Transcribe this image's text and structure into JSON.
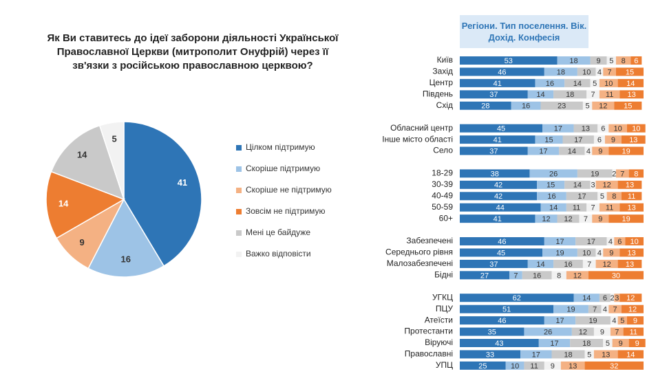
{
  "chart_data": [
    {
      "type": "pie",
      "title": "Як Ви ставитесь до ідеї заборони діяльності Української Православної Церкви (митрополит Онуфрій) через її зв'язки з російською православною церквою?",
      "categories": [
        "Цілком підтримую",
        "Скоріше підтримую",
        "Скоріше не підтримую",
        "Зовсім не підтримую",
        "Мені це байдуже",
        "Важко відповісти"
      ],
      "values": [
        41,
        16,
        9,
        14,
        14,
        5
      ],
      "colors": [
        "#2e75b6",
        "#9dc3e6",
        "#f4b183",
        "#ed7d31",
        "#c9c9c9",
        "#f2f2f2"
      ]
    },
    {
      "type": "stacked-bar",
      "title": "Регіони. Тип поселення. Вік. Дохід. Конфесія",
      "categories": [
        "Київ",
        "Захід",
        "Центр",
        "Південь",
        "Схід",
        null,
        "Обласний центр",
        "Інше місто області",
        "Село",
        null,
        "18-29",
        "30-39",
        "40-49",
        "50-59",
        "60+",
        null,
        "Забезпечені",
        "Середнього рівня",
        "Малозабезпечені",
        "Бідні",
        null,
        "УГКЦ",
        "ПЦУ",
        "Атеїсти",
        "Протестанти",
        "Віруючі",
        "Православні",
        "УПЦ"
      ],
      "xlim": [
        0,
        100
      ],
      "series": [
        {
          "color": "#2e75b6",
          "values": [
            53,
            46,
            41,
            37,
            28,
            null,
            45,
            41,
            37,
            null,
            38,
            42,
            42,
            44,
            41,
            null,
            46,
            45,
            37,
            27,
            null,
            62,
            51,
            46,
            35,
            43,
            33,
            25
          ]
        },
        {
          "color": "#9dc3e6",
          "values": [
            18,
            18,
            16,
            14,
            16,
            null,
            17,
            15,
            17,
            null,
            26,
            15,
            16,
            14,
            12,
            null,
            17,
            19,
            14,
            7,
            null,
            14,
            19,
            17,
            26,
            17,
            17,
            10
          ]
        },
        {
          "color": "#c9c9c9",
          "values": [
            9,
            10,
            14,
            18,
            23,
            null,
            13,
            17,
            14,
            null,
            19,
            14,
            17,
            11,
            12,
            null,
            17,
            10,
            16,
            16,
            null,
            6,
            7,
            19,
            12,
            18,
            18,
            11
          ]
        },
        {
          "color": "#f2f2f2",
          "values": [
            5,
            4,
            5,
            7,
            5,
            null,
            6,
            6,
            4,
            null,
            2,
            3,
            5,
            7,
            7,
            null,
            4,
            4,
            7,
            8,
            null,
            2,
            4,
            4,
            9,
            5,
            5,
            9
          ]
        },
        {
          "color": "#f4b183",
          "values": [
            8,
            7,
            10,
            11,
            12,
            null,
            10,
            9,
            9,
            null,
            7,
            12,
            8,
            11,
            9,
            null,
            6,
            9,
            12,
            12,
            null,
            3,
            7,
            5,
            7,
            9,
            13,
            13
          ]
        },
        {
          "color": "#ed7d31",
          "values": [
            6,
            15,
            14,
            13,
            15,
            null,
            10,
            13,
            19,
            null,
            8,
            13,
            11,
            13,
            19,
            null,
            10,
            13,
            13,
            30,
            null,
            12,
            12,
            9,
            11,
            9,
            14,
            32
          ]
        }
      ]
    }
  ]
}
